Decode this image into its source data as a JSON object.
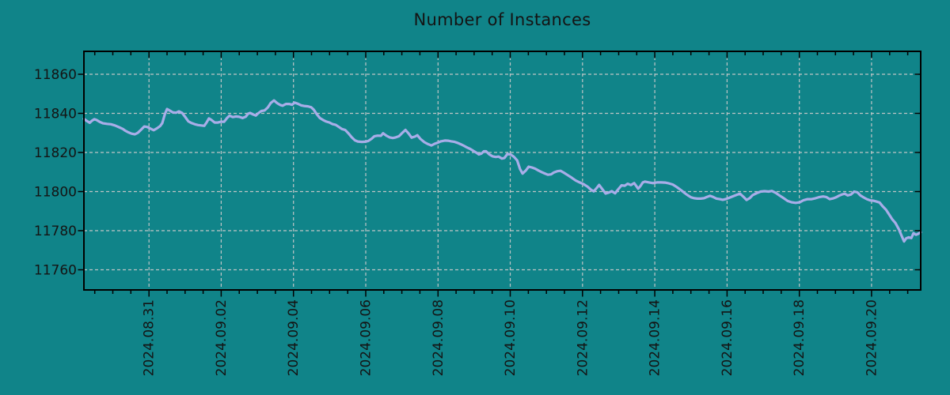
{
  "colors": {
    "background": "#108489",
    "line": "#a8ade8",
    "grid": "#bfc5c6",
    "axis": "#000000",
    "text": "#141414"
  },
  "chart_data": {
    "type": "line",
    "title": "Number of Instances",
    "xlabel": "",
    "ylabel": "",
    "legend": null,
    "grid": {
      "on": true,
      "style": "dashed"
    },
    "x_axis": {
      "unit": "days since 2024-08-31 00:00",
      "range_days": [
        -1.8,
        21.36
      ],
      "tick_positions_days": [
        0,
        2,
        4,
        6,
        8,
        10,
        12,
        14,
        16,
        18,
        20
      ],
      "tick_labels": [
        "2024.08.31",
        "2024.09.02",
        "2024.09.04",
        "2024.09.06",
        "2024.09.08",
        "2024.09.10",
        "2024.09.12",
        "2024.09.14",
        "2024.09.16",
        "2024.09.18",
        "2024.09.20"
      ],
      "minor_tick_step_days": 0.5,
      "tick_label_rotation_deg": -90
    },
    "y_axis": {
      "range": [
        11749.7,
        11871.7
      ],
      "ticks": [
        11760,
        11780,
        11800,
        11820,
        11840,
        11860
      ]
    },
    "series": [
      {
        "name": "Number of Instances",
        "color": "#a8ade8",
        "x_days": [
          -1.8,
          -1.71,
          -1.64,
          -1.58,
          -1.51,
          -1.45,
          -1.36,
          -1.27,
          -1.16,
          -1.05,
          -0.94,
          -0.83,
          -0.72,
          -0.66,
          -0.57,
          -0.48,
          -0.39,
          -0.31,
          -0.22,
          -0.13,
          -0.04,
          0.04,
          0.13,
          0.22,
          0.31,
          0.37,
          0.44,
          0.5,
          0.57,
          0.66,
          0.75,
          0.83,
          0.92,
          1.01,
          1.09,
          1.18,
          1.27,
          1.36,
          1.45,
          1.53,
          1.6,
          1.66,
          1.73,
          1.82,
          1.91,
          1.99,
          2.08,
          2.17,
          2.23,
          2.32,
          2.41,
          2.5,
          2.59,
          2.68,
          2.74,
          2.8,
          2.89,
          2.96,
          3.02,
          3.11,
          3.2,
          3.29,
          3.37,
          3.46,
          3.55,
          3.63,
          3.7,
          3.79,
          3.88,
          3.96,
          4.03,
          4.12,
          4.21,
          4.29,
          4.4,
          4.49,
          4.56,
          4.64,
          4.73,
          4.82,
          4.91,
          5.0,
          5.08,
          5.17,
          5.26,
          5.34,
          5.43,
          5.52,
          5.61,
          5.7,
          5.78,
          5.89,
          5.98,
          6.07,
          6.16,
          6.24,
          6.33,
          6.42,
          6.48,
          6.57,
          6.66,
          6.75,
          6.83,
          6.92,
          7.01,
          7.1,
          7.19,
          7.27,
          7.36,
          7.43,
          7.51,
          7.62,
          7.71,
          7.82,
          7.9,
          7.99,
          8.08,
          8.19,
          8.28,
          8.37,
          8.46,
          8.54,
          8.63,
          8.72,
          8.81,
          8.89,
          8.98,
          9.07,
          9.13,
          9.2,
          9.27,
          9.33,
          9.42,
          9.51,
          9.6,
          9.68,
          9.77,
          9.84,
          9.92,
          10.01,
          10.1,
          10.19,
          10.27,
          10.34,
          10.43,
          10.51,
          10.6,
          10.69,
          10.78,
          10.86,
          10.95,
          11.04,
          11.13,
          11.21,
          11.3,
          11.39,
          11.48,
          11.59,
          11.7,
          11.81,
          11.92,
          12.03,
          12.14,
          12.23,
          12.31,
          12.4,
          12.46,
          12.55,
          12.64,
          12.73,
          12.81,
          12.9,
          12.99,
          13.08,
          13.17,
          13.25,
          13.34,
          13.43,
          13.47,
          13.54,
          13.6,
          13.67,
          13.73,
          13.84,
          13.95,
          14.06,
          14.17,
          14.28,
          14.39,
          14.5,
          14.61,
          14.72,
          14.83,
          14.92,
          15.0,
          15.09,
          15.18,
          15.27,
          15.36,
          15.44,
          15.53,
          15.62,
          15.71,
          15.8,
          15.88,
          15.97,
          16.06,
          16.17,
          16.28,
          16.36,
          16.45,
          16.54,
          16.63,
          16.71,
          16.82,
          16.93,
          17.04,
          17.15,
          17.24,
          17.35,
          17.46,
          17.57,
          17.68,
          17.79,
          17.9,
          18.01,
          18.12,
          18.23,
          18.34,
          18.45,
          18.56,
          18.66,
          18.75,
          18.84,
          18.93,
          19.01,
          19.1,
          19.19,
          19.26,
          19.34,
          19.43,
          19.52,
          19.61,
          19.69,
          19.78,
          19.87,
          19.96,
          20.05,
          20.13,
          20.22,
          20.31,
          20.4,
          20.48,
          20.57,
          20.66,
          20.75,
          20.83,
          20.9,
          20.96,
          21.03,
          21.1,
          21.16,
          21.23,
          21.29,
          21.36
        ],
        "values": [
          11837.2,
          11836.0,
          11835.2,
          11836.2,
          11837.0,
          11836.6,
          11835.6,
          11834.9,
          11834.6,
          11834.4,
          11833.8,
          11832.9,
          11832.0,
          11831.2,
          11830.3,
          11829.6,
          11829.3,
          11830.0,
          11831.6,
          11833.3,
          11833.0,
          11832.2,
          11831.4,
          11832.3,
          11833.5,
          11835.0,
          11839.5,
          11842.2,
          11841.5,
          11840.5,
          11840.3,
          11841.0,
          11840.2,
          11838.0,
          11835.9,
          11835.0,
          11834.4,
          11834.0,
          11833.8,
          11833.6,
          11835.5,
          11837.4,
          11836.6,
          11835.3,
          11835.3,
          11835.7,
          11835.7,
          11837.8,
          11838.8,
          11838.1,
          11838.4,
          11838.2,
          11837.6,
          11838.3,
          11839.8,
          11840.2,
          11839.4,
          11838.9,
          11840.0,
          11841.2,
          11841.5,
          11843.0,
          11845.3,
          11846.6,
          11845.2,
          11844.3,
          11843.9,
          11844.8,
          11844.8,
          11844.4,
          11845.5,
          11844.9,
          11844.1,
          11843.8,
          11843.6,
          11843.1,
          11841.9,
          11839.7,
          11837.6,
          11836.6,
          11835.8,
          11835.3,
          11834.5,
          11834.1,
          11833.0,
          11832.0,
          11831.5,
          11829.8,
          11827.8,
          11826.2,
          11825.6,
          11825.4,
          11825.5,
          11825.9,
          11827.0,
          11828.3,
          11828.6,
          11828.5,
          11829.8,
          11828.6,
          11827.7,
          11827.4,
          11827.7,
          11828.3,
          11830.0,
          11831.5,
          11829.6,
          11827.6,
          11828.1,
          11828.8,
          11827.0,
          11825.3,
          11824.4,
          11823.6,
          11824.4,
          11825.0,
          11825.7,
          11826.1,
          11826.0,
          11825.7,
          11825.4,
          11824.9,
          11824.2,
          11823.4,
          11822.5,
          11821.8,
          11820.8,
          11819.8,
          11819.0,
          11819.4,
          11820.6,
          11820.6,
          11819.0,
          11818.0,
          11817.7,
          11817.9,
          11816.9,
          11817.2,
          11819.2,
          11819.0,
          11817.8,
          11816.0,
          11811.5,
          11809.2,
          11810.8,
          11812.7,
          11812.3,
          11811.7,
          11810.8,
          11810.0,
          11809.3,
          11808.6,
          11808.8,
          11809.8,
          11810.4,
          11810.6,
          11809.7,
          11808.4,
          11807.1,
          11805.7,
          11804.7,
          11803.8,
          11802.5,
          11801.0,
          11800.1,
          11802.0,
          11803.4,
          11801.2,
          11799.0,
          11799.5,
          11800.2,
          11799.1,
          11801.2,
          11803.2,
          11803.0,
          11804.0,
          11803.3,
          11804.3,
          11803.3,
          11801.5,
          11802.7,
          11804.7,
          11805.1,
          11804.7,
          11804.3,
          11804.7,
          11804.7,
          11804.6,
          11804.2,
          11803.6,
          11802.3,
          11800.8,
          11799.2,
          11798.0,
          11797.1,
          11796.6,
          11796.4,
          11796.4,
          11796.6,
          11797.2,
          11797.8,
          11797.2,
          11796.4,
          11796.1,
          11795.8,
          11796.2,
          11796.8,
          11797.6,
          11798.4,
          11798.9,
          11797.4,
          11795.7,
          11796.7,
          11798.2,
          11799.2,
          11800.0,
          11800.2,
          11800.0,
          11800.3,
          11799.3,
          11797.9,
          11796.6,
          11795.2,
          11794.5,
          11794.2,
          11794.5,
          11795.6,
          11796.1,
          11796.1,
          11796.6,
          11797.2,
          11797.5,
          11797.2,
          11796.1,
          11796.5,
          11797.0,
          11797.9,
          11798.6,
          11798.9,
          11798.0,
          11798.5,
          11800.0,
          11799.6,
          11798.0,
          11797.0,
          11796.1,
          11795.5,
          11795.3,
          11794.9,
          11794.4,
          11792.4,
          11790.7,
          11788.5,
          11785.9,
          11783.9,
          11780.9,
          11777.5,
          11774.5,
          11776.1,
          11776.6,
          11776.2,
          11778.7,
          11777.9,
          11778.4,
          11779.2
        ]
      }
    ]
  }
}
